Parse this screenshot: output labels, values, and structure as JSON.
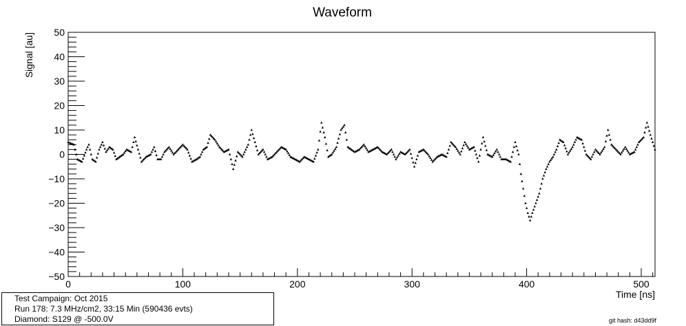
{
  "chart_data": {
    "type": "scatter",
    "title": "Waveform",
    "xlabel": "Time [ns]",
    "ylabel": "Signal [au]",
    "xlim": [
      0,
      512
    ],
    "ylim": [
      -50,
      50
    ],
    "x_ticks": [
      0,
      100,
      200,
      300,
      400,
      500
    ],
    "y_ticks": [
      -50,
      -40,
      -30,
      -20,
      -10,
      0,
      10,
      20,
      30,
      40,
      50
    ],
    "x_tick_labels": [
      "0",
      "100",
      "200",
      "300",
      "400",
      "500"
    ],
    "y_tick_labels": [
      "−50",
      "−40",
      "−30",
      "−20",
      "−10",
      "0",
      "10",
      "20",
      "30",
      "40",
      "50"
    ],
    "grid": false,
    "marker_color": "#000000",
    "series": [
      {
        "x": [
          0,
          5,
          8,
          12,
          16,
          18,
          21,
          24,
          27,
          30,
          33,
          36,
          39,
          42,
          45,
          48,
          51,
          55,
          58,
          61,
          64,
          68,
          72,
          75,
          78,
          81,
          84,
          88,
          92,
          96,
          100,
          104,
          108,
          112,
          115,
          118,
          121,
          124,
          128,
          132,
          136,
          140,
          144,
          148,
          152,
          157,
          160,
          163,
          166,
          170,
          174,
          178,
          182,
          186,
          190,
          194,
          198,
          202,
          206,
          210,
          214,
          218,
          221,
          224,
          227,
          230,
          234,
          238,
          241,
          244,
          247,
          250,
          254,
          258,
          262,
          266,
          270,
          274,
          278,
          282,
          286,
          290,
          294,
          298,
          302,
          306,
          310,
          314,
          318,
          322,
          326,
          330,
          334,
          338,
          342,
          346,
          350,
          354,
          358,
          362,
          366,
          370,
          374,
          378,
          382,
          386,
          390,
          393,
          395,
          397,
          399,
          401,
          403,
          405,
          408,
          411,
          414,
          417,
          420,
          423,
          426,
          429,
          432,
          436,
          440,
          444,
          448,
          452,
          456,
          460,
          464,
          468,
          471,
          474,
          478,
          482,
          486,
          490,
          494,
          498,
          502,
          505,
          508,
          512
        ],
        "y": [
          5,
          4,
          -2,
          -3,
          2,
          4,
          -2,
          -3,
          2,
          5,
          1,
          3,
          2,
          -2,
          -1,
          0,
          2,
          1,
          7,
          2,
          -3,
          -1,
          0,
          3,
          -2,
          -2,
          1,
          3,
          0,
          2,
          4,
          2,
          -3,
          -2,
          -1,
          2,
          3,
          8,
          6,
          3,
          1,
          2,
          -6,
          1,
          -1,
          4,
          10,
          5,
          0,
          2,
          -2,
          -1,
          1,
          3,
          2,
          -1,
          -2,
          -3,
          -1,
          -2,
          -3,
          2,
          13,
          7,
          -1,
          0,
          3,
          10,
          12,
          3,
          2,
          1,
          2,
          4,
          1,
          2,
          3,
          1,
          0,
          2,
          -2,
          1,
          0,
          2,
          -5,
          1,
          2,
          0,
          -3,
          -1,
          0,
          -1,
          5,
          3,
          0,
          5,
          2,
          3,
          -3,
          7,
          0,
          -1,
          2,
          -2,
          -2,
          -3,
          5,
          0,
          -8,
          -14,
          -20,
          -24,
          -27,
          -24,
          -20,
          -16,
          -10,
          -6,
          -3,
          -1,
          2,
          6,
          5,
          0,
          3,
          7,
          6,
          0,
          -2,
          2,
          0,
          3,
          10,
          4,
          2,
          0,
          3,
          0,
          1,
          5,
          7,
          13,
          8,
          2
        ]
      }
    ]
  },
  "info": {
    "line1": "Test Campaign: Oct 2015",
    "line2": "Run 178: 7.3 MHz/cm2, 33:15 Min (590436 evts)",
    "line3": "Diamond: S129 @ -500.0V"
  },
  "git_hash": "git hash: d43dd9f"
}
